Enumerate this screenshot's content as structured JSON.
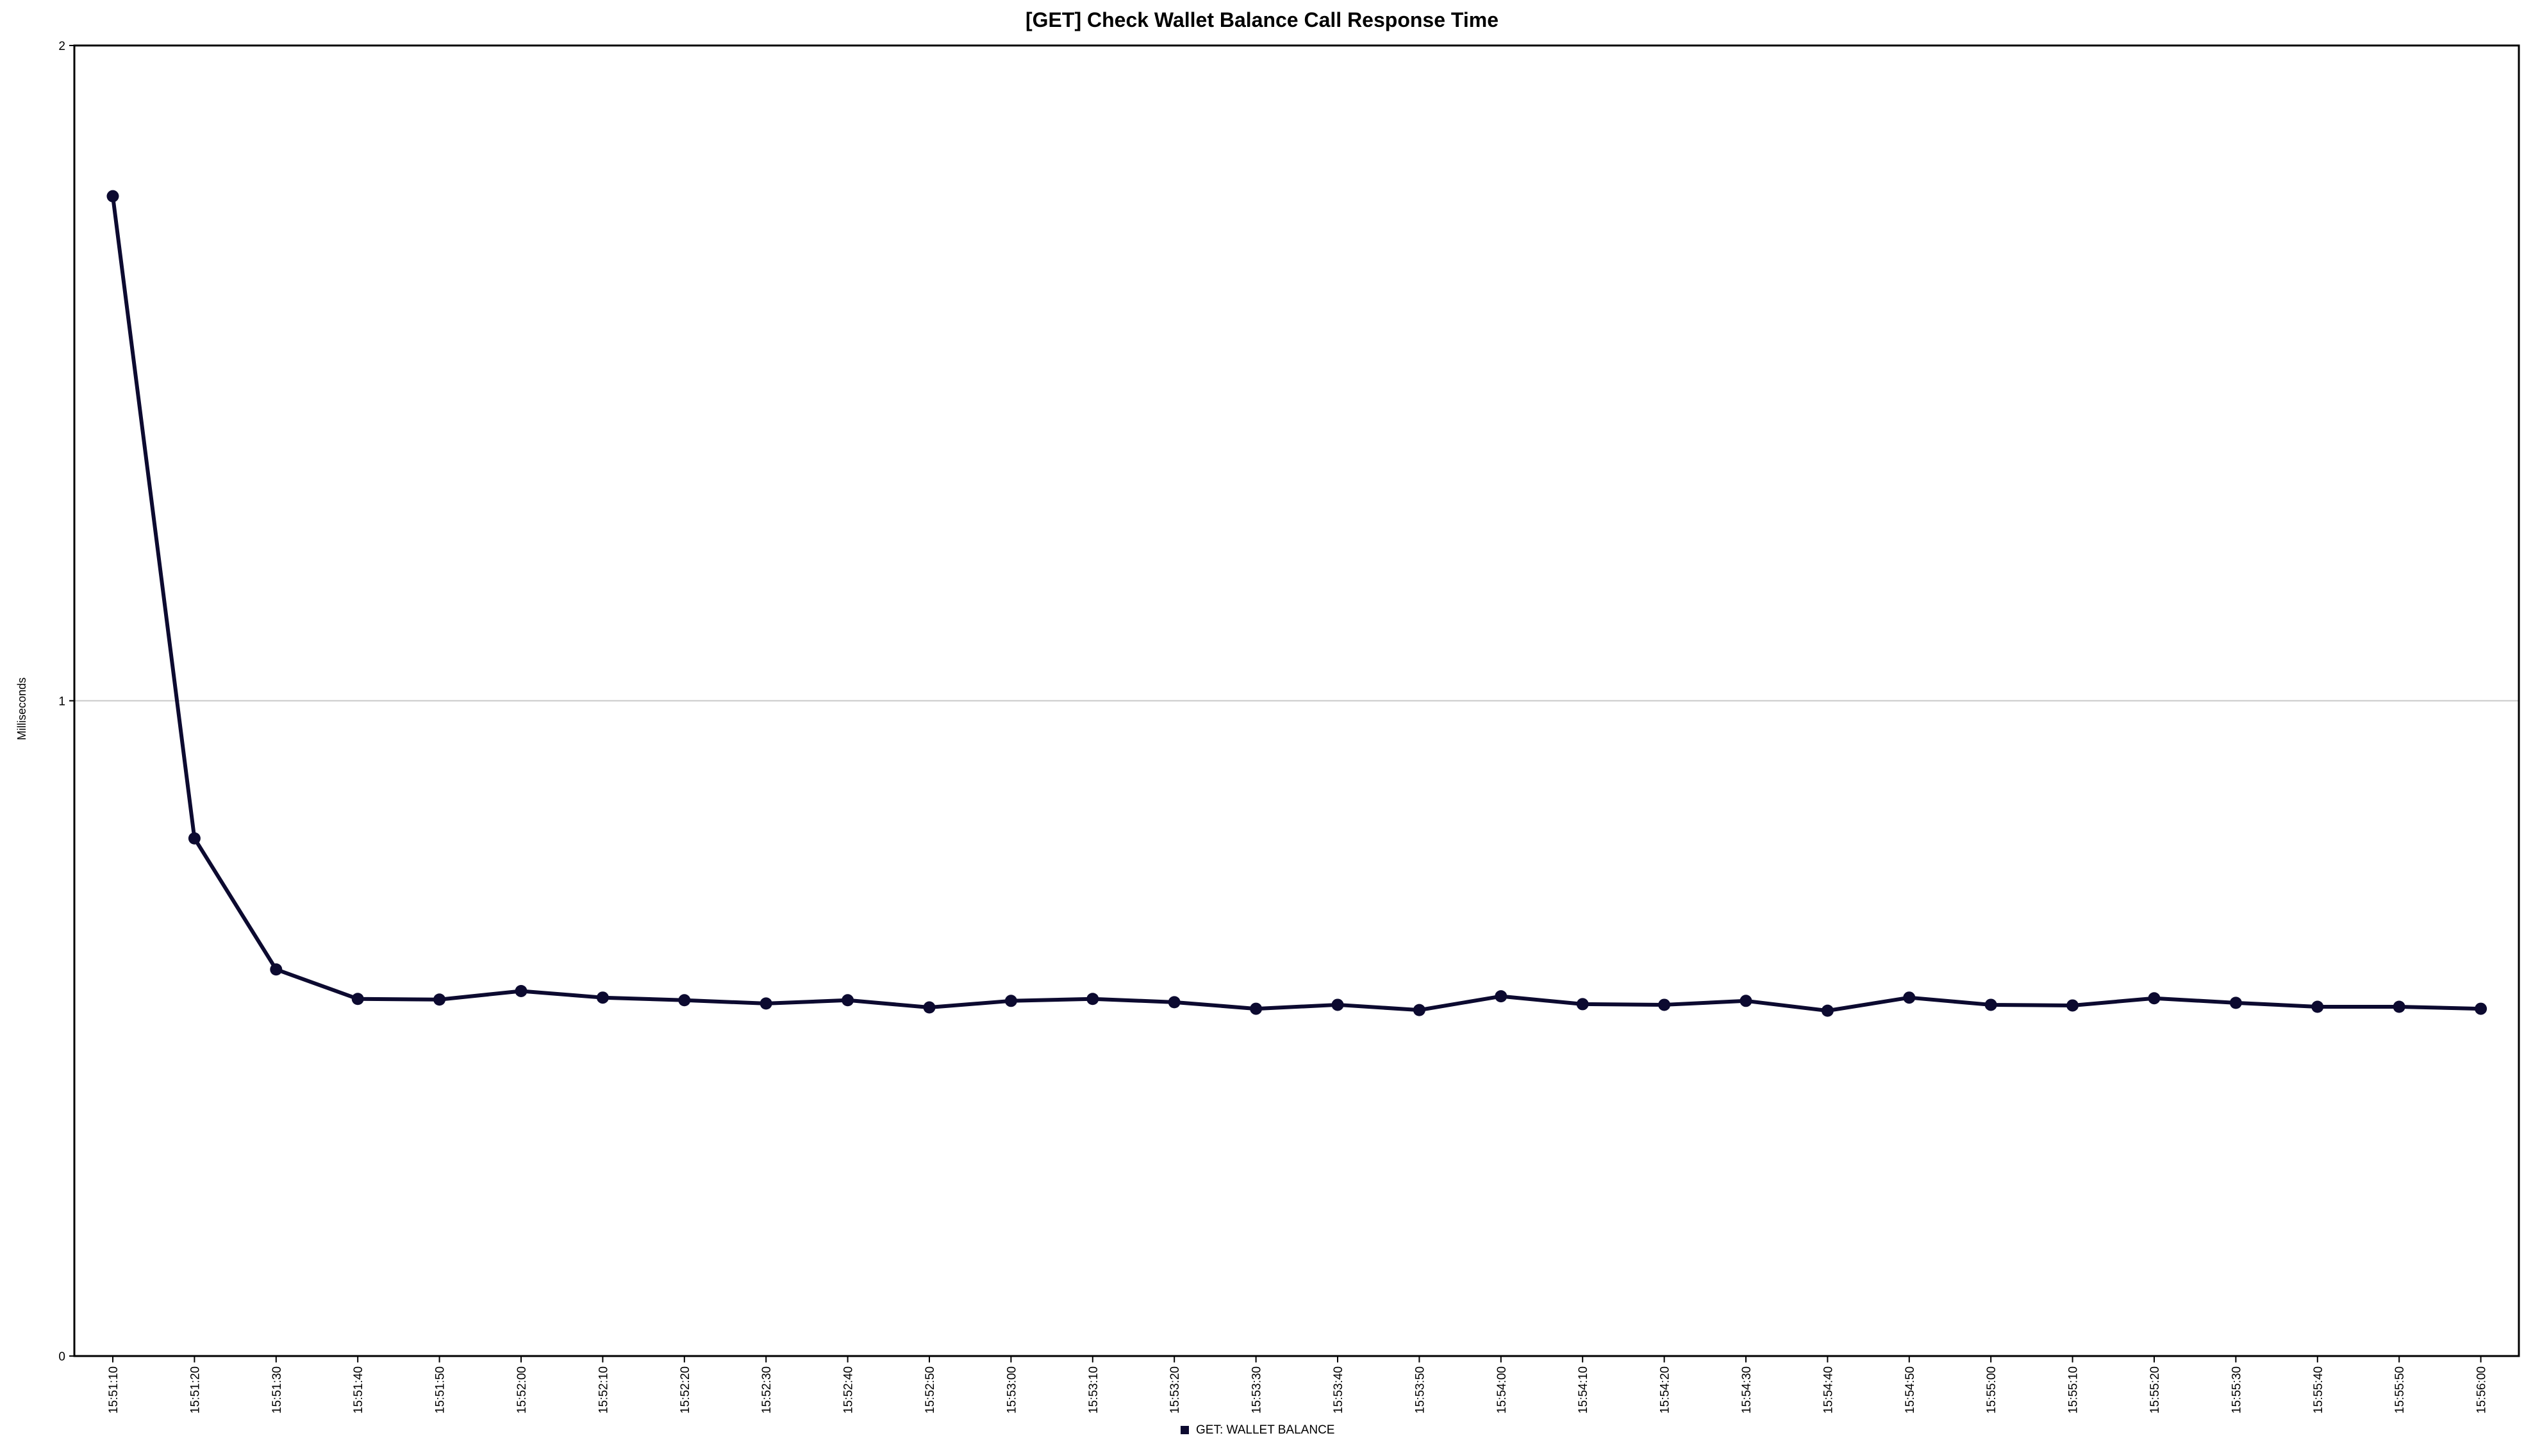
{
  "chart_data": {
    "type": "line",
    "title": "[GET] Check Wallet Balance Call Response Time",
    "xlabel": "",
    "ylabel": "Milliseconds",
    "ylim": [
      0,
      2
    ],
    "y_ticks": [
      "0",
      "1",
      "2"
    ],
    "grid": "horizontal",
    "legend_position": "bottom",
    "colors": {
      "series": "#0c0a30",
      "grid": "#c8c8c8",
      "axis": "#000000"
    },
    "categories": [
      "15:51:10",
      "15:51:20",
      "15:51:30",
      "15:51:40",
      "15:51:50",
      "15:52:00",
      "15:52:10",
      "15:52:20",
      "15:52:30",
      "15:52:40",
      "15:52:50",
      "15:53:00",
      "15:53:10",
      "15:53:20",
      "15:53:30",
      "15:53:40",
      "15:53:50",
      "15:54:00",
      "15:54:10",
      "15:54:20",
      "15:54:30",
      "15:54:40",
      "15:54:50",
      "15:55:00",
      "15:55:10",
      "15:55:20",
      "15:55:30",
      "15:55:40",
      "15:55:50",
      "15:56:00"
    ],
    "series": [
      {
        "name": "GET: WALLET BALANCE",
        "values": [
          1.77,
          0.79,
          0.59,
          0.545,
          0.544,
          0.557,
          0.547,
          0.543,
          0.538,
          0.543,
          0.532,
          0.542,
          0.545,
          0.54,
          0.53,
          0.536,
          0.528,
          0.549,
          0.537,
          0.536,
          0.542,
          0.527,
          0.547,
          0.536,
          0.535,
          0.546,
          0.539,
          0.533,
          0.533,
          0.53
        ]
      }
    ]
  }
}
